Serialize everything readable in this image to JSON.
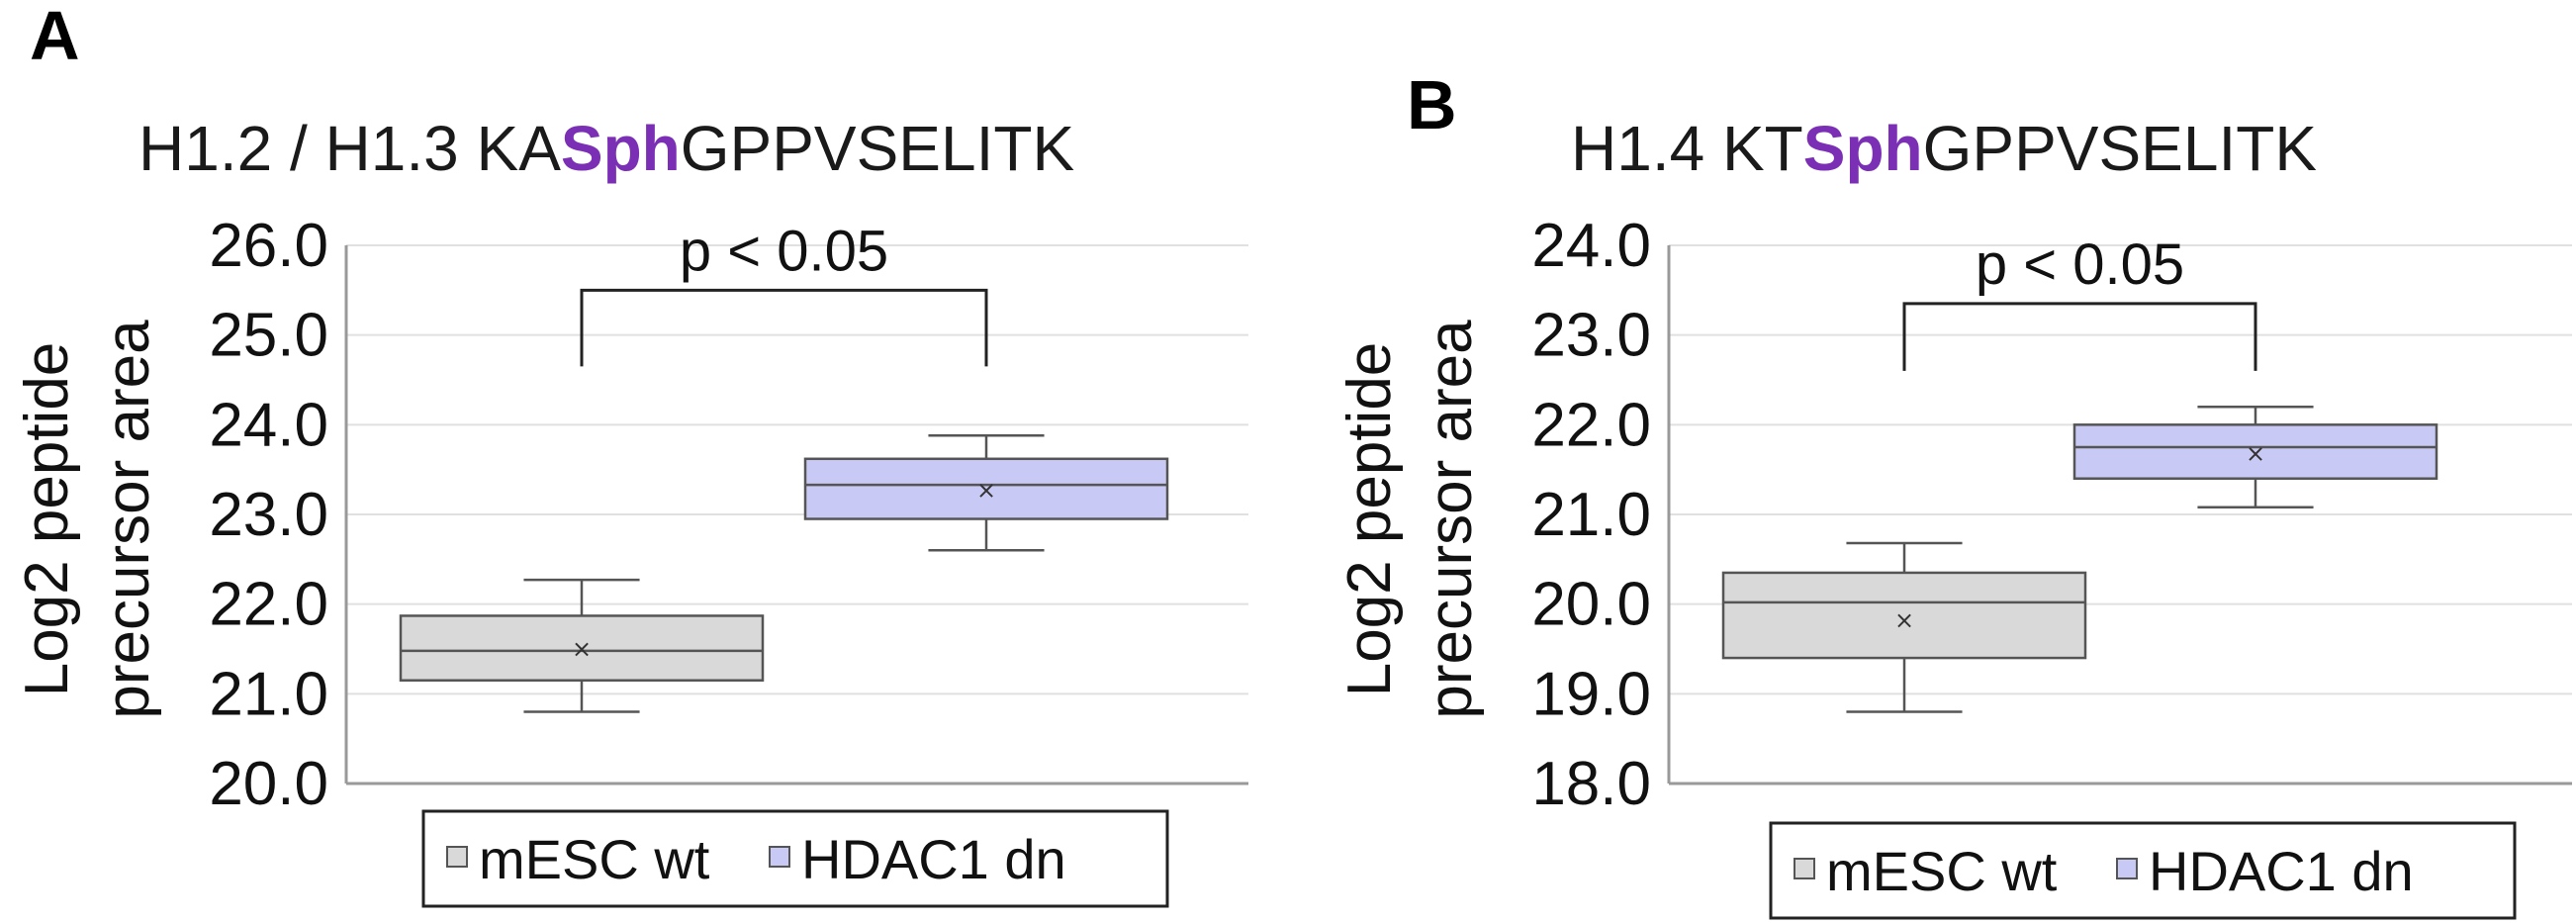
{
  "chart_data": [
    {
      "panel": "A",
      "type": "box",
      "title_parts": [
        {
          "text": "H1.2 / H1.3 KA",
          "highlight": false
        },
        {
          "text": "Sph",
          "highlight": true
        },
        {
          "text": "GPPVSELITK",
          "highlight": false
        }
      ],
      "ylabel": [
        "Log2 peptide",
        "precursor area"
      ],
      "ylim": [
        20.0,
        26.0
      ],
      "yticks": [
        "20.0",
        "21.0",
        "22.0",
        "23.0",
        "24.0",
        "25.0",
        "26.0"
      ],
      "grid": true,
      "series": [
        {
          "name": "mESC wt",
          "color": "#d9d9d9",
          "min": 20.8,
          "q1": 21.15,
          "median": 21.48,
          "mean": 21.5,
          "q3": 21.87,
          "max": 22.27
        },
        {
          "name": "HDAC1 dn",
          "color": "#c9c9f5",
          "min": 22.6,
          "q1": 22.95,
          "median": 23.33,
          "mean": 23.27,
          "q3": 23.62,
          "max": 23.88
        }
      ],
      "significance": {
        "label": "p < 0.05",
        "between": [
          0,
          1
        ],
        "y_top": 25.5,
        "y_left_end": 24.65,
        "y_right_end": 24.65
      },
      "legend": [
        "mESC wt",
        "HDAC1 dn"
      ]
    },
    {
      "panel": "B",
      "type": "box",
      "title_parts": [
        {
          "text": "H1.4 KT",
          "highlight": false
        },
        {
          "text": "Sph",
          "highlight": true
        },
        {
          "text": "GPPVSELITK",
          "highlight": false
        }
      ],
      "ylabel": [
        "Log2 peptide",
        "precursor area"
      ],
      "ylim": [
        18.0,
        24.0
      ],
      "yticks": [
        "18.0",
        "19.0",
        "20.0",
        "21.0",
        "22.0",
        "23.0",
        "24.0"
      ],
      "grid": true,
      "series": [
        {
          "name": "mESC wt",
          "color": "#d9d9d9",
          "min": 18.8,
          "q1": 19.4,
          "median": 20.02,
          "mean": 19.82,
          "q3": 20.35,
          "max": 20.68
        },
        {
          "name": "HDAC1 dn",
          "color": "#c9c9f5",
          "min": 21.08,
          "q1": 21.4,
          "median": 21.75,
          "mean": 21.68,
          "q3": 22.0,
          "max": 22.2
        }
      ],
      "significance": {
        "label": "p < 0.05",
        "between": [
          0,
          1
        ],
        "y_top": 23.35,
        "y_left_end": 22.6,
        "y_right_end": 22.6
      },
      "legend": [
        "mESC wt",
        "HDAC1 dn"
      ]
    }
  ]
}
